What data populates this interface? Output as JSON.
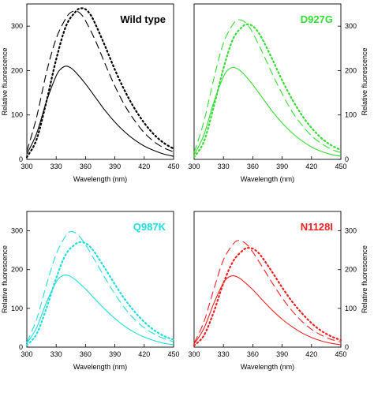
{
  "chart_data": [
    {
      "type": "line",
      "title": "Wild type",
      "color": "#000000",
      "xlabel": "Wavelength (nm)",
      "ylabel": "Relative fluorescence",
      "xlim": [
        300,
        450
      ],
      "ylim": [
        0,
        350
      ],
      "xticks": [
        300,
        330,
        360,
        390,
        420,
        450
      ],
      "yticks": [
        0,
        100,
        200,
        300
      ],
      "yaxis_side": "left",
      "series": [
        {
          "style": "solid",
          "x": [
            300,
            310,
            320,
            330,
            335,
            340,
            345,
            350,
            360,
            370,
            380,
            390,
            400,
            410,
            420,
            430,
            440,
            450
          ],
          "y": [
            12,
            58,
            130,
            188,
            204,
            210,
            206,
            196,
            170,
            140,
            110,
            84,
            62,
            44,
            30,
            20,
            12,
            7
          ]
        },
        {
          "style": "dashed",
          "x": [
            300,
            310,
            320,
            330,
            340,
            345,
            350,
            355,
            360,
            370,
            380,
            390,
            400,
            410,
            420,
            430,
            440,
            450
          ],
          "y": [
            18,
            95,
            195,
            272,
            318,
            331,
            334,
            328,
            312,
            268,
            215,
            165,
            122,
            88,
            60,
            40,
            26,
            17
          ]
        },
        {
          "style": "dotted",
          "x": [
            300,
            310,
            320,
            330,
            340,
            350,
            355,
            360,
            365,
            370,
            380,
            390,
            400,
            410,
            420,
            430,
            440,
            450
          ],
          "y": [
            5,
            45,
            130,
            225,
            300,
            333,
            340,
            338,
            326,
            305,
            255,
            202,
            155,
            115,
            82,
            56,
            37,
            24
          ]
        }
      ]
    },
    {
      "type": "line",
      "title": "D927G",
      "color": "#33dd33",
      "xlabel": "Wavelength (nm)",
      "ylabel": "Relative fluorescence",
      "xlim": [
        300,
        450
      ],
      "ylim": [
        0,
        350
      ],
      "xticks": [
        300,
        330,
        360,
        390,
        420,
        450
      ],
      "yticks": [
        0,
        100,
        200,
        300
      ],
      "yaxis_side": "right",
      "series": [
        {
          "style": "solid",
          "x": [
            300,
            310,
            320,
            330,
            335,
            340,
            345,
            350,
            360,
            370,
            380,
            390,
            400,
            410,
            420,
            430,
            440,
            450
          ],
          "y": [
            10,
            55,
            128,
            186,
            202,
            207,
            203,
            194,
            168,
            138,
            108,
            82,
            60,
            42,
            28,
            18,
            11,
            7
          ]
        },
        {
          "style": "dashed",
          "x": [
            300,
            310,
            320,
            330,
            340,
            345,
            350,
            355,
            360,
            370,
            380,
            390,
            400,
            410,
            420,
            430,
            440,
            450
          ],
          "y": [
            15,
            85,
            180,
            262,
            305,
            314,
            312,
            302,
            285,
            240,
            192,
            148,
            108,
            78,
            53,
            36,
            23,
            15
          ]
        },
        {
          "style": "dotted",
          "x": [
            300,
            310,
            320,
            330,
            340,
            350,
            355,
            360,
            365,
            370,
            380,
            390,
            400,
            410,
            420,
            430,
            440,
            450
          ],
          "y": [
            5,
            40,
            118,
            205,
            272,
            300,
            304,
            300,
            288,
            270,
            225,
            178,
            136,
            100,
            71,
            48,
            32,
            21
          ]
        }
      ]
    },
    {
      "type": "line",
      "title": "Q987K",
      "color": "#22dddd",
      "xlabel": "Wavelength (nm)",
      "ylabel": "Relative fluorescence",
      "xlim": [
        300,
        450
      ],
      "ylim": [
        0,
        350
      ],
      "xticks": [
        300,
        330,
        360,
        390,
        420,
        450
      ],
      "yticks": [
        0,
        100,
        200,
        300
      ],
      "yaxis_side": "left",
      "series": [
        {
          "style": "solid",
          "x": [
            300,
            310,
            320,
            330,
            335,
            340,
            345,
            350,
            360,
            370,
            380,
            390,
            400,
            410,
            420,
            430,
            440,
            450
          ],
          "y": [
            10,
            50,
            115,
            168,
            182,
            186,
            182,
            173,
            150,
            123,
            97,
            74,
            54,
            38,
            26,
            17,
            10,
            6
          ]
        },
        {
          "style": "dashed",
          "x": [
            300,
            310,
            320,
            330,
            340,
            345,
            350,
            355,
            360,
            370,
            380,
            390,
            400,
            410,
            420,
            430,
            440,
            450
          ],
          "y": [
            12,
            72,
            160,
            240,
            288,
            298,
            294,
            282,
            264,
            222,
            178,
            137,
            101,
            72,
            50,
            34,
            22,
            14
          ]
        },
        {
          "style": "dotted",
          "x": [
            300,
            310,
            320,
            330,
            340,
            350,
            355,
            360,
            365,
            370,
            380,
            390,
            400,
            410,
            420,
            430,
            440,
            450
          ],
          "y": [
            5,
            34,
            100,
            178,
            240,
            266,
            271,
            268,
            258,
            242,
            203,
            162,
            124,
            92,
            65,
            44,
            29,
            19
          ]
        }
      ]
    },
    {
      "type": "line",
      "title": "N1128I",
      "color": "#ee2222",
      "xlabel": "Wavelength (nm)",
      "ylabel": "Relative fluorescence",
      "xlim": [
        300,
        450
      ],
      "ylim": [
        0,
        350
      ],
      "xticks": [
        300,
        330,
        360,
        390,
        420,
        450
      ],
      "yticks": [
        0,
        100,
        200,
        300
      ],
      "yaxis_side": "right",
      "series": [
        {
          "style": "solid",
          "x": [
            300,
            310,
            320,
            330,
            335,
            340,
            345,
            350,
            360,
            370,
            380,
            390,
            400,
            410,
            420,
            430,
            440,
            450
          ],
          "y": [
            8,
            48,
            112,
            166,
            180,
            184,
            180,
            171,
            148,
            121,
            95,
            72,
            53,
            37,
            25,
            16,
            10,
            6
          ]
        },
        {
          "style": "dashed",
          "x": [
            300,
            310,
            320,
            330,
            340,
            345,
            350,
            355,
            360,
            370,
            380,
            390,
            400,
            410,
            420,
            430,
            440,
            450
          ],
          "y": [
            10,
            65,
            148,
            225,
            266,
            275,
            272,
            262,
            245,
            206,
            165,
            127,
            94,
            67,
            46,
            31,
            20,
            13
          ]
        },
        {
          "style": "dotted",
          "x": [
            300,
            310,
            320,
            330,
            340,
            350,
            355,
            360,
            365,
            370,
            380,
            390,
            400,
            410,
            420,
            430,
            440,
            450
          ],
          "y": [
            4,
            30,
            90,
            165,
            222,
            250,
            256,
            254,
            245,
            230,
            193,
            154,
            118,
            88,
            62,
            42,
            28,
            18
          ]
        }
      ]
    }
  ]
}
